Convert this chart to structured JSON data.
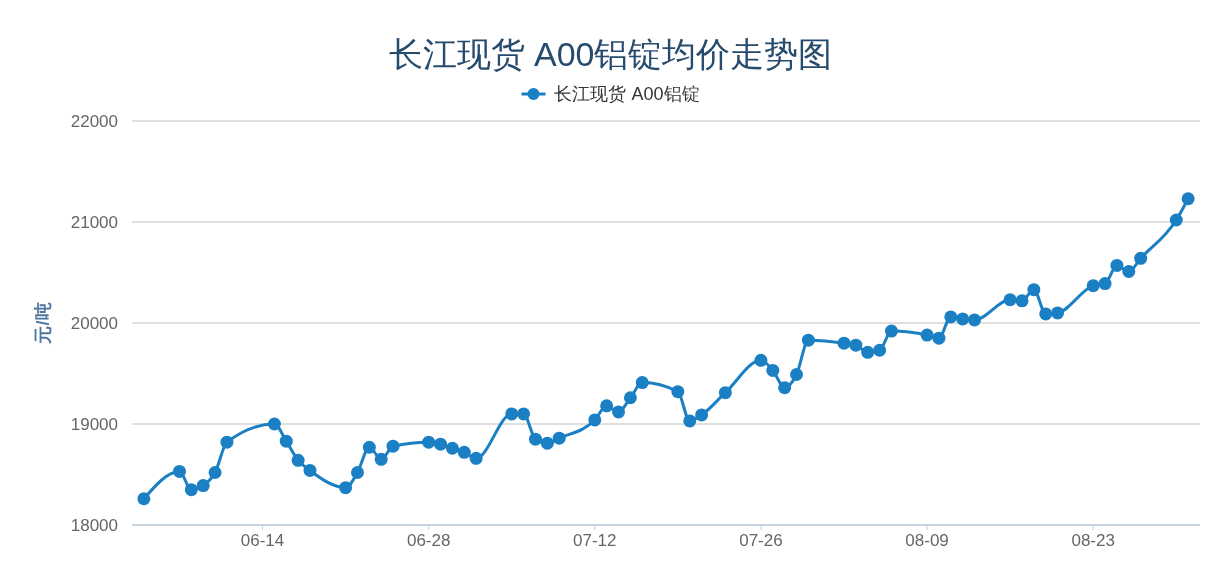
{
  "chart_data": {
    "type": "line",
    "title": "长江现货 A00铝锭均价走势图",
    "ylabel": "元/吨",
    "x": [
      "--06-04",
      "--06-07",
      "--06-08",
      "--06-09",
      "--06-10",
      "--06-11",
      "--06-15",
      "--06-16",
      "--06-17",
      "--06-18",
      "--06-21",
      "--06-22",
      "--06-23",
      "--06-24",
      "--06-25",
      "--06-28",
      "--06-29",
      "--06-30",
      "--07-01",
      "--07-02",
      "--07-05",
      "--07-06",
      "--07-07",
      "--07-08",
      "--07-09",
      "--07-12",
      "--07-13",
      "--07-14",
      "--07-15",
      "--07-16",
      "--07-19",
      "--07-20",
      "--07-21",
      "--07-23",
      "--07-26",
      "--07-27",
      "--07-28",
      "--07-29",
      "--07-30",
      "--08-02",
      "--08-03",
      "--08-04",
      "--08-05",
      "--08-06",
      "--08-09",
      "--08-10",
      "--08-11",
      "--08-12",
      "--08-13",
      "--08-16",
      "--08-17",
      "--08-18",
      "--08-19",
      "--08-20",
      "--08-23",
      "--08-24",
      "--08-25",
      "--08-26",
      "--08-27",
      "--08-30",
      "--08-31"
    ],
    "series": [
      {
        "name": "长江现货 A00铝锭",
        "color": "#1b7fc3",
        "values": [
          18260,
          18530,
          18350,
          18390,
          18520,
          18820,
          19000,
          18830,
          18640,
          18540,
          18370,
          18520,
          18770,
          18650,
          18780,
          18820,
          18800,
          18760,
          18720,
          18660,
          19100,
          19100,
          18850,
          18810,
          18860,
          19040,
          19180,
          19120,
          19260,
          19410,
          19320,
          19030,
          19090,
          19310,
          19630,
          19530,
          19360,
          19490,
          19830,
          19800,
          19780,
          19710,
          19730,
          19920,
          19880,
          19850,
          20060,
          20040,
          20030,
          20230,
          20220,
          20330,
          20090,
          20100,
          20370,
          20390,
          20570,
          20510,
          20640,
          21020,
          21230
        ]
      }
    ],
    "xlim": [
      "--06-03",
      "--09-01"
    ],
    "xticks": [
      {
        "value": "--06-14",
        "label": "06-14"
      },
      {
        "value": "--06-28",
        "label": "06-28"
      },
      {
        "value": "--07-12",
        "label": "07-12"
      },
      {
        "value": "--07-26",
        "label": "07-26"
      },
      {
        "value": "--08-09",
        "label": "08-09"
      },
      {
        "value": "--08-23",
        "label": "08-23"
      }
    ],
    "ylim": [
      18000,
      22000
    ],
    "yticks": [
      18000,
      19000,
      20000,
      21000,
      22000
    ],
    "grid": "y",
    "legend": "top",
    "marker": "circle",
    "line_style": "solid"
  }
}
